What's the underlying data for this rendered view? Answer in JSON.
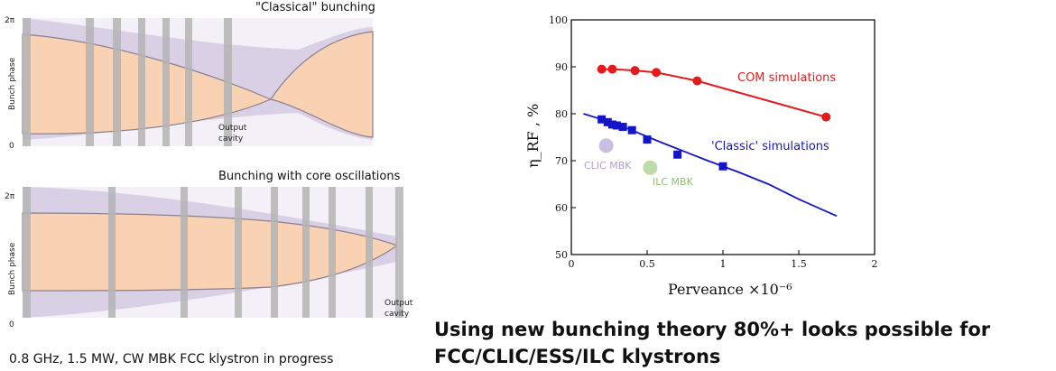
{
  "panels": {
    "classical": {
      "title": "\"Classical\" bunching",
      "y_tick_top": "2π",
      "y_tick_bottom": "0",
      "ylabel": "Bunch phase",
      "annotation": [
        "Output",
        "cavity"
      ]
    },
    "core": {
      "title": "Bunching with core oscillations",
      "y_tick_top": "2π",
      "y_tick_bottom": "0",
      "ylabel": "Bunch phase",
      "annotation": [
        "Output",
        "cavity"
      ]
    }
  },
  "caption": "0.8 GHz, 1.5 MW, CW MBK FCC klystron in progress",
  "headline": "Using new bunching theory 80%+ looks possible for FCC/CLIC/ESS/ILC klystrons",
  "colors": {
    "envelope_fill": "#d9d0e6",
    "core_fill": "#f9d2b4",
    "cavity_gray": "#b4b4b4",
    "com_red": "#e41a1c",
    "classic_blue": "#1414c8",
    "clic_marker": "#cbbfe0",
    "ilc_marker": "#bfdca8"
  },
  "chart_data": {
    "type": "scatter",
    "xlabel": "Perveance ×10⁻⁶",
    "ylabel": "η_RF , %",
    "xlim": [
      0,
      2
    ],
    "ylim": [
      50,
      100
    ],
    "xticks": [
      0,
      0.5,
      1,
      1.5,
      2
    ],
    "yticks": [
      50,
      60,
      70,
      80,
      90,
      100
    ],
    "xtick_labels": [
      "0",
      "0.5",
      "1",
      "1.5",
      "2"
    ],
    "ytick_labels": [
      "50",
      "60",
      "70",
      "80",
      "90",
      "100"
    ],
    "series": [
      {
        "name": "COM simulations",
        "color": "#e41a1c",
        "marker": "circle",
        "points": [
          [
            0.2,
            89.5
          ],
          [
            0.27,
            89.5
          ],
          [
            0.42,
            89.2
          ],
          [
            0.56,
            88.8
          ],
          [
            0.83,
            87.0
          ],
          [
            1.68,
            79.3
          ]
        ]
      },
      {
        "name": "'Classic' simulations",
        "color": "#1414c8",
        "marker": "square",
        "points": [
          [
            0.2,
            78.8
          ],
          [
            0.24,
            78.2
          ],
          [
            0.27,
            77.7
          ],
          [
            0.3,
            77.5
          ],
          [
            0.34,
            77.2
          ],
          [
            0.4,
            76.5
          ],
          [
            0.5,
            74.5
          ],
          [
            0.7,
            71.3
          ],
          [
            1.0,
            68.8
          ]
        ],
        "trend": [
          [
            0.08,
            80.0
          ],
          [
            0.3,
            77.8
          ],
          [
            0.6,
            73.8
          ],
          [
            0.9,
            70.0
          ],
          [
            1.1,
            67.6
          ],
          [
            1.3,
            65.0
          ],
          [
            1.5,
            61.8
          ],
          [
            1.75,
            58.2
          ]
        ]
      }
    ],
    "reference_points": [
      {
        "name": "CLIC MBK",
        "x": 0.23,
        "y": 73.2,
        "color": "#cbbfe0"
      },
      {
        "name": "ILC MBK",
        "x": 0.52,
        "y": 68.5,
        "color": "#bfdca8"
      }
    ]
  }
}
